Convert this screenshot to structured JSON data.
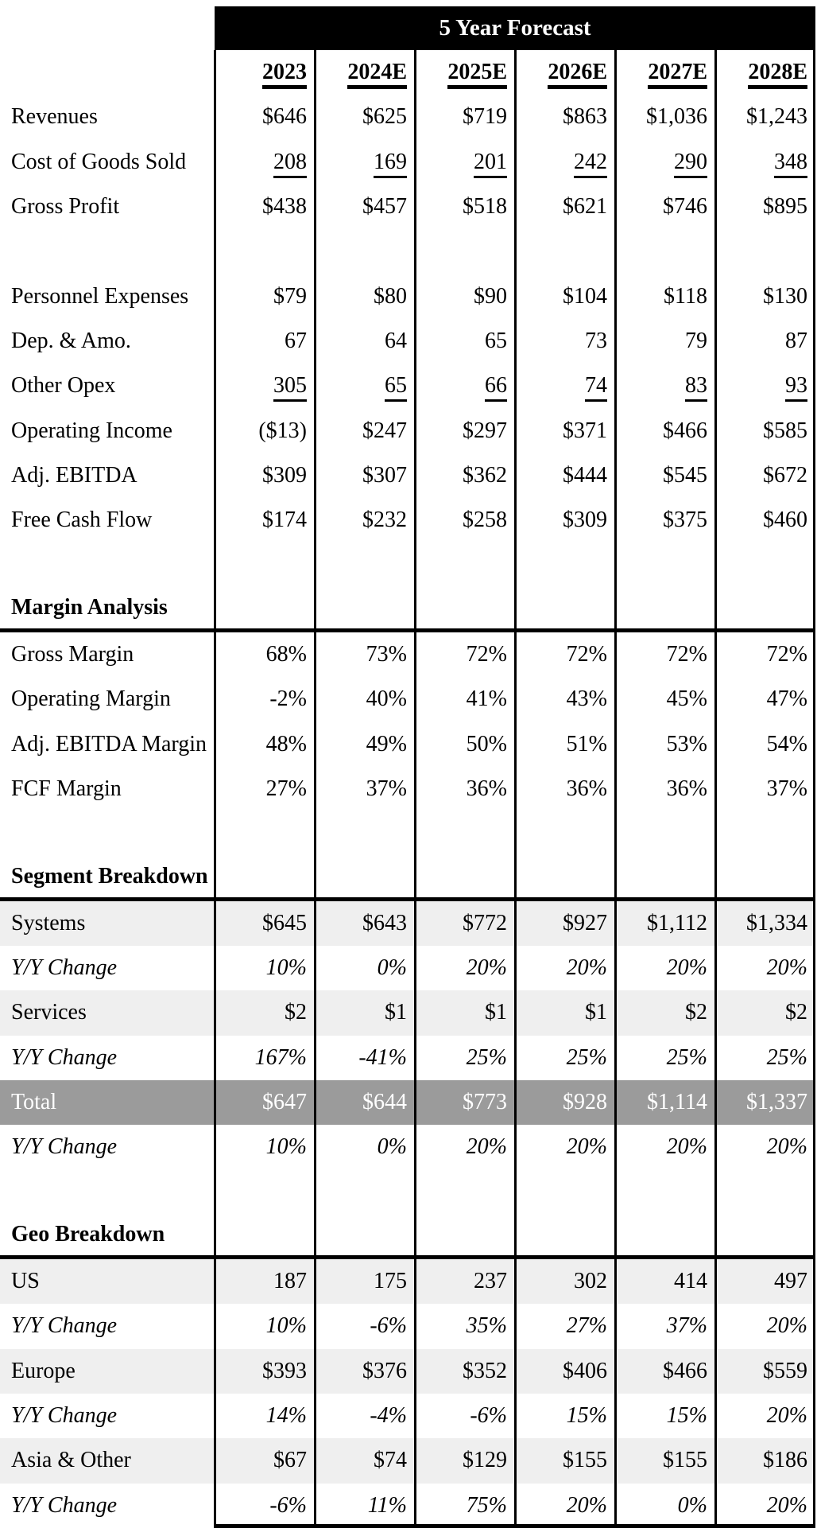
{
  "table": {
    "title": "5 Year Forecast",
    "columns": [
      "2023",
      "2024E",
      "2025E",
      "2026E",
      "2027E",
      "2028E"
    ],
    "rows": [
      {
        "label": "Revenues",
        "values": [
          "$646",
          "$625",
          "$719",
          "$863",
          "$1,036",
          "$1,243"
        ],
        "style": "normal"
      },
      {
        "label": "Cost of Goods Sold",
        "values": [
          "208",
          "169",
          "201",
          "242",
          "290",
          "348"
        ],
        "style": "underline"
      },
      {
        "label": "Gross Profit",
        "values": [
          "$438",
          "$457",
          "$518",
          "$621",
          "$746",
          "$895"
        ],
        "style": "normal"
      },
      {
        "type": "spacer"
      },
      {
        "label": "Personnel Expenses",
        "values": [
          "$79",
          "$80",
          "$90",
          "$104",
          "$118",
          "$130"
        ],
        "style": "normal"
      },
      {
        "label": "Dep. & Amo.",
        "values": [
          "67",
          "64",
          "65",
          "73",
          "79",
          "87"
        ],
        "style": "normal"
      },
      {
        "label": "Other Opex",
        "values": [
          "305",
          "65",
          "66",
          "74",
          "83",
          "93"
        ],
        "style": "underline"
      },
      {
        "label": "Operating Income",
        "values": [
          "($13)",
          "$247",
          "$297",
          "$371",
          "$466",
          "$585"
        ],
        "style": "normal"
      },
      {
        "label": "Adj. EBITDA",
        "values": [
          "$309",
          "$307",
          "$362",
          "$444",
          "$545",
          "$672"
        ],
        "style": "normal"
      },
      {
        "label": "Free Cash Flow",
        "values": [
          "$174",
          "$232",
          "$258",
          "$309",
          "$375",
          "$460"
        ],
        "style": "normal"
      },
      {
        "type": "spacer"
      },
      {
        "type": "section",
        "label": "Margin Analysis"
      },
      {
        "label": "Gross Margin",
        "values": [
          "68%",
          "73%",
          "72%",
          "72%",
          "72%",
          "72%"
        ],
        "style": "normal"
      },
      {
        "label": "Operating Margin",
        "values": [
          "-2%",
          "40%",
          "41%",
          "43%",
          "45%",
          "47%"
        ],
        "style": "normal"
      },
      {
        "label": "Adj. EBITDA Margin",
        "values": [
          "48%",
          "49%",
          "50%",
          "51%",
          "53%",
          "54%"
        ],
        "style": "normal"
      },
      {
        "label": "FCF Margin",
        "values": [
          "27%",
          "37%",
          "36%",
          "36%",
          "36%",
          "37%"
        ],
        "style": "normal"
      },
      {
        "type": "spacer"
      },
      {
        "type": "section",
        "label": "Segment Breakdown"
      },
      {
        "label": "Systems",
        "values": [
          "$645",
          "$643",
          "$772",
          "$927",
          "$1,112",
          "$1,334"
        ],
        "style": "shaded"
      },
      {
        "label": "Y/Y Change",
        "values": [
          "10%",
          "0%",
          "20%",
          "20%",
          "20%",
          "20%"
        ],
        "style": "italic"
      },
      {
        "label": "Services",
        "values": [
          "$2",
          "$1",
          "$1",
          "$1",
          "$2",
          "$2"
        ],
        "style": "shaded"
      },
      {
        "label": "Y/Y Change",
        "values": [
          "167%",
          "-41%",
          "25%",
          "25%",
          "25%",
          "25%"
        ],
        "style": "italic"
      },
      {
        "label": "Total",
        "values": [
          "$647",
          "$644",
          "$773",
          "$928",
          "$1,114",
          "$1,337"
        ],
        "style": "total"
      },
      {
        "label": "Y/Y Change",
        "values": [
          "10%",
          "0%",
          "20%",
          "20%",
          "20%",
          "20%"
        ],
        "style": "italic"
      },
      {
        "type": "spacer"
      },
      {
        "type": "section",
        "label": "Geo Breakdown"
      },
      {
        "label": "US",
        "values": [
          "187",
          "175",
          "237",
          "302",
          "414",
          "497"
        ],
        "style": "shaded"
      },
      {
        "label": "Y/Y Change",
        "values": [
          "10%",
          "-6%",
          "35%",
          "27%",
          "37%",
          "20%"
        ],
        "style": "italic"
      },
      {
        "label": "Europe",
        "values": [
          "$393",
          "$376",
          "$352",
          "$406",
          "$466",
          "$559"
        ],
        "style": "shaded"
      },
      {
        "label": "Y/Y Change",
        "values": [
          "14%",
          "-4%",
          "-6%",
          "15%",
          "15%",
          "20%"
        ],
        "style": "italic"
      },
      {
        "label": "Asia & Other",
        "values": [
          "$67",
          "$74",
          "$129",
          "$155",
          "$155",
          "$186"
        ],
        "style": "shaded"
      },
      {
        "label": "Y/Y Change",
        "values": [
          "-6%",
          "11%",
          "75%",
          "20%",
          "0%",
          "20%"
        ],
        "style": "italic"
      }
    ]
  },
  "colors": {
    "header_bg": "#000000",
    "header_text": "#ffffff",
    "row_shade": "#efefef",
    "total_bg": "#9b9b9b",
    "total_text": "#ffffff",
    "border": "#000000"
  }
}
